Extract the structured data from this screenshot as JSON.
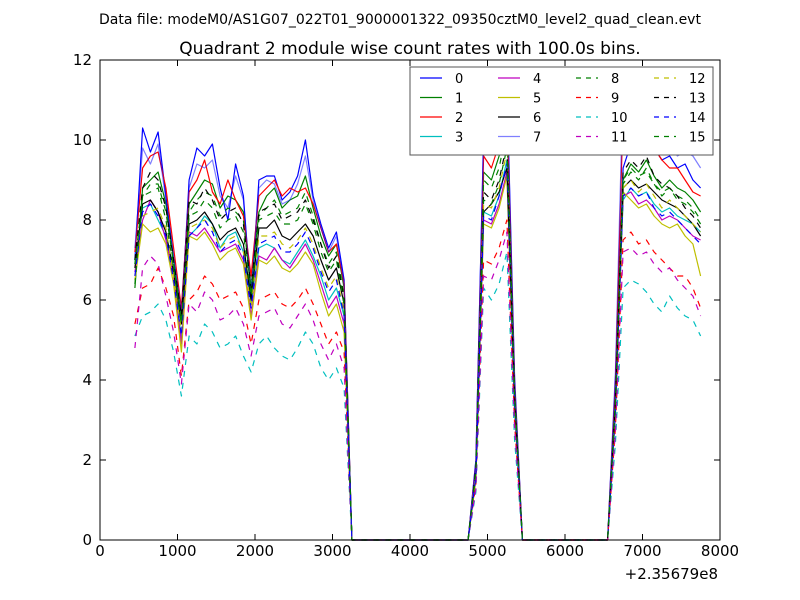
{
  "chart_data": {
    "type": "line",
    "suptitle": "Data file: modeM0/AS1G07_022T01_9000001322_09350cztM0_level2_quad_clean.evt",
    "title": "Quadrant 2 module wise count rates with 100.0s bins.",
    "xlabel": "",
    "ylabel": "",
    "x_offset_label": "+2.35679e8",
    "xlim": [
      0,
      8000
    ],
    "ylim": [
      0,
      12
    ],
    "xticks": [
      0,
      1000,
      2000,
      3000,
      4000,
      5000,
      6000,
      7000,
      8000
    ],
    "yticks": [
      0,
      2,
      4,
      6,
      8,
      10,
      12
    ],
    "grid": false,
    "legend": {
      "position": "top-right",
      "columns": 4
    },
    "x": [
      450,
      550,
      650,
      750,
      850,
      950,
      1050,
      1150,
      1250,
      1350,
      1450,
      1550,
      1650,
      1750,
      1850,
      1950,
      2050,
      2150,
      2250,
      2350,
      2450,
      2550,
      2650,
      2750,
      2850,
      2950,
      3050,
      3150,
      3250,
      3350,
      4750,
      4850,
      4950,
      5050,
      5150,
      5250,
      5350,
      5450,
      6550,
      6650,
      6750,
      6850,
      6950,
      7050,
      7150,
      7250,
      7350,
      7450,
      7550,
      7650,
      7750
    ],
    "series": [
      {
        "name": "0",
        "color": "#0000ff",
        "dash": "solid",
        "values": [
          7.0,
          10.3,
          9.7,
          10.2,
          8.6,
          7.0,
          5.5,
          9.0,
          9.8,
          9.6,
          9.9,
          8.8,
          8.0,
          9.4,
          8.6,
          6.0,
          9.0,
          9.1,
          9.1,
          8.5,
          8.7,
          9.1,
          10.0,
          8.6,
          7.9,
          7.3,
          7.7,
          6.5,
          0,
          0,
          0,
          2.0,
          10.1,
          9.9,
          10.4,
          11.3,
          4.0,
          0,
          0,
          4.0,
          9.3,
          9.9,
          9.7,
          10.0,
          9.8,
          9.5,
          9.6,
          9.3,
          9.4,
          9.0,
          8.8
        ]
      },
      {
        "name": "1",
        "color": "#008000",
        "dash": "solid",
        "values": [
          6.3,
          8.8,
          9.0,
          9.2,
          8.4,
          7.0,
          5.6,
          8.4,
          8.7,
          9.0,
          8.9,
          8.3,
          8.6,
          8.5,
          8.2,
          6.3,
          8.2,
          8.6,
          8.8,
          8.3,
          8.5,
          8.6,
          9.1,
          8.3,
          7.6,
          7.1,
          7.4,
          6.3,
          0,
          0,
          0,
          1.8,
          9.2,
          9.0,
          9.6,
          10.6,
          3.8,
          0,
          0,
          3.6,
          9.0,
          9.4,
          9.2,
          9.5,
          9.1,
          8.8,
          9.0,
          8.8,
          8.7,
          8.5,
          8.2
        ]
      },
      {
        "name": "2",
        "color": "#ff0000",
        "dash": "solid",
        "values": [
          7.2,
          9.3,
          9.6,
          9.7,
          8.8,
          7.3,
          5.8,
          8.7,
          9.0,
          9.5,
          8.7,
          8.4,
          9.0,
          8.5,
          8.1,
          6.6,
          8.6,
          8.8,
          9.0,
          8.6,
          8.8,
          8.7,
          8.8,
          8.4,
          7.8,
          7.2,
          7.4,
          6.4,
          0,
          0,
          0,
          1.9,
          9.6,
          9.3,
          9.9,
          10.9,
          3.9,
          0,
          0,
          3.9,
          10.7,
          10.0,
          9.7,
          9.9,
          9.8,
          9.5,
          9.3,
          9.3,
          9.0,
          8.7,
          8.6
        ]
      },
      {
        "name": "3",
        "color": "#00bfbf",
        "dash": "solid",
        "values": [
          6.9,
          8.3,
          8.4,
          8.0,
          7.6,
          6.8,
          5.0,
          7.6,
          7.8,
          8.1,
          7.9,
          7.3,
          7.6,
          7.7,
          7.2,
          5.9,
          7.3,
          7.4,
          7.3,
          7.0,
          6.9,
          7.2,
          7.5,
          7.1,
          6.6,
          6.0,
          6.3,
          5.6,
          0,
          0,
          0,
          1.6,
          8.2,
          8.1,
          8.6,
          9.5,
          3.4,
          0,
          0,
          3.3,
          8.5,
          8.8,
          8.6,
          8.7,
          8.4,
          8.2,
          8.3,
          8.1,
          8.0,
          7.9,
          7.7
        ]
      },
      {
        "name": "4",
        "color": "#bf00bf",
        "dash": "solid",
        "values": [
          6.7,
          8.0,
          8.5,
          8.2,
          7.5,
          6.6,
          4.9,
          7.7,
          7.6,
          7.8,
          7.5,
          7.2,
          7.3,
          7.4,
          7.0,
          5.6,
          7.1,
          7.0,
          7.3,
          7.0,
          6.8,
          7.1,
          7.4,
          7.0,
          6.4,
          5.8,
          6.1,
          5.4,
          0,
          0,
          0,
          1.6,
          8.0,
          7.9,
          8.4,
          9.2,
          3.3,
          0,
          0,
          3.2,
          8.6,
          8.7,
          8.4,
          8.5,
          8.3,
          8.0,
          8.1,
          8.0,
          7.8,
          7.6,
          7.5
        ]
      },
      {
        "name": "5",
        "color": "#bfbf00",
        "dash": "solid",
        "values": [
          6.5,
          7.9,
          7.7,
          7.8,
          7.4,
          6.4,
          4.7,
          7.6,
          7.5,
          7.7,
          7.4,
          7.0,
          7.2,
          7.3,
          6.9,
          5.5,
          7.0,
          6.9,
          7.1,
          6.8,
          6.7,
          6.9,
          7.2,
          6.9,
          6.2,
          5.6,
          5.9,
          5.2,
          0,
          0,
          0,
          1.5,
          7.9,
          7.8,
          8.3,
          9.1,
          3.2,
          0,
          0,
          3.1,
          8.7,
          8.5,
          8.3,
          8.4,
          8.1,
          7.9,
          7.8,
          7.9,
          7.6,
          7.4,
          6.6
        ]
      },
      {
        "name": "6",
        "color": "#000000",
        "dash": "solid",
        "values": [
          6.8,
          8.4,
          8.5,
          8.2,
          7.7,
          6.7,
          5.4,
          7.9,
          8.0,
          8.2,
          7.9,
          7.5,
          7.7,
          7.8,
          7.4,
          6.0,
          7.8,
          7.8,
          8.0,
          7.6,
          7.5,
          7.7,
          7.9,
          7.6,
          7.0,
          6.5,
          6.8,
          5.9,
          0,
          0,
          0,
          1.7,
          8.2,
          8.4,
          8.7,
          9.3,
          3.5,
          0,
          0,
          3.4,
          8.8,
          9.0,
          8.8,
          8.9,
          8.7,
          8.5,
          8.4,
          8.3,
          8.1,
          7.9,
          7.6
        ]
      },
      {
        "name": "7",
        "color": "#0000ff",
        "dash": "solid",
        "opacity": 0.5,
        "values": [
          7.3,
          9.8,
          9.4,
          9.9,
          8.5,
          7.1,
          5.7,
          8.8,
          9.4,
          9.3,
          9.5,
          8.6,
          8.3,
          9.1,
          8.5,
          6.2,
          8.8,
          9.0,
          8.9,
          8.4,
          8.5,
          8.9,
          9.6,
          8.5,
          7.8,
          7.2,
          7.6,
          6.4,
          0,
          0,
          0,
          2.0,
          10.0,
          9.7,
          10.1,
          11.4,
          4.1,
          0,
          0,
          4.2,
          11.4,
          11.0,
          10.0,
          10.3,
          10.0,
          9.7,
          9.9,
          9.6,
          9.7,
          9.6,
          9.3
        ]
      },
      {
        "name": "8",
        "color": "#008000",
        "dash": "dashed",
        "values": [
          6.4,
          8.6,
          8.9,
          8.9,
          8.2,
          6.9,
          5.5,
          8.2,
          8.5,
          8.7,
          8.6,
          8.1,
          8.3,
          8.2,
          8.0,
          6.2,
          8.1,
          8.3,
          8.5,
          8.1,
          8.2,
          8.3,
          8.7,
          8.1,
          7.4,
          6.9,
          7.2,
          6.1,
          0,
          0,
          0,
          1.8,
          9.0,
          8.8,
          9.3,
          10.3,
          3.7,
          0,
          0,
          3.5,
          8.9,
          9.2,
          9.0,
          9.3,
          8.9,
          8.6,
          8.8,
          8.6,
          8.5,
          8.3,
          8.0
        ]
      },
      {
        "name": "9",
        "color": "#ff0000",
        "dash": "dashed",
        "values": [
          5.4,
          6.3,
          6.4,
          6.8,
          6.3,
          5.6,
          4.1,
          6.0,
          6.2,
          6.6,
          6.4,
          6.0,
          6.1,
          6.2,
          5.8,
          4.9,
          6.0,
          6.1,
          6.2,
          5.9,
          5.8,
          6.0,
          6.3,
          5.9,
          5.4,
          4.9,
          5.2,
          4.7,
          0,
          0,
          0,
          1.4,
          7.0,
          6.9,
          7.3,
          8.0,
          2.9,
          0,
          0,
          2.8,
          7.5,
          7.7,
          7.4,
          7.5,
          7.2,
          7.0,
          6.8,
          6.6,
          6.6,
          6.3,
          5.8
        ]
      },
      {
        "name": "10",
        "color": "#00bfbf",
        "dash": "dashed",
        "values": [
          5.1,
          5.6,
          5.7,
          5.9,
          5.5,
          4.7,
          3.6,
          5.1,
          4.9,
          5.4,
          5.2,
          4.8,
          4.9,
          5.1,
          4.6,
          4.2,
          4.9,
          5.1,
          4.8,
          4.6,
          4.5,
          4.8,
          5.2,
          4.9,
          4.3,
          4.0,
          4.3,
          3.8,
          0,
          0,
          0,
          1.2,
          6.3,
          6.0,
          6.4,
          7.2,
          2.5,
          0,
          0,
          2.4,
          6.3,
          6.5,
          6.4,
          6.2,
          5.9,
          5.7,
          6.1,
          5.8,
          5.6,
          5.5,
          5.1
        ]
      },
      {
        "name": "11",
        "color": "#bf00bf",
        "dash": "dashed",
        "values": [
          4.8,
          6.8,
          7.1,
          6.9,
          6.1,
          5.2,
          3.9,
          5.9,
          5.7,
          6.2,
          6.0,
          5.5,
          5.6,
          5.8,
          5.4,
          4.6,
          5.6,
          5.7,
          5.8,
          5.4,
          5.3,
          5.6,
          5.9,
          5.5,
          4.9,
          4.5,
          4.9,
          4.3,
          0,
          0,
          0,
          1.3,
          6.6,
          6.5,
          7.0,
          7.7,
          2.8,
          0,
          0,
          2.7,
          7.2,
          7.3,
          7.1,
          7.2,
          6.9,
          6.7,
          6.8,
          6.5,
          6.3,
          6.1,
          5.6
        ]
      },
      {
        "name": "12",
        "color": "#bfbf00",
        "dash": "dashed",
        "values": [
          6.9,
          8.1,
          8.2,
          8.3,
          7.8,
          6.6,
          5.2,
          7.8,
          7.9,
          8.0,
          7.8,
          7.3,
          7.5,
          7.6,
          7.2,
          5.8,
          7.6,
          7.6,
          7.7,
          7.4,
          7.3,
          7.5,
          7.8,
          7.4,
          6.8,
          6.3,
          6.6,
          5.7,
          0,
          0,
          0,
          1.7,
          8.4,
          8.3,
          8.8,
          9.7,
          3.5,
          0,
          0,
          3.3,
          8.8,
          9.0,
          8.7,
          8.9,
          8.6,
          8.3,
          8.5,
          8.3,
          8.1,
          7.9,
          7.7
        ]
      },
      {
        "name": "13",
        "color": "#000000",
        "dash": "dashed",
        "values": [
          7.0,
          8.8,
          9.2,
          9.0,
          8.3,
          7.0,
          5.6,
          8.5,
          8.4,
          8.8,
          8.5,
          8.0,
          8.2,
          8.3,
          7.9,
          6.3,
          8.2,
          8.3,
          8.4,
          8.0,
          8.1,
          8.2,
          8.5,
          8.0,
          7.4,
          6.8,
          7.1,
          6.0,
          0,
          0,
          0,
          1.8,
          8.7,
          8.5,
          9.0,
          9.9,
          3.6,
          0,
          0,
          3.5,
          9.2,
          9.5,
          9.3,
          9.6,
          9.1,
          8.9,
          8.8,
          8.6,
          8.3,
          8.1,
          7.8
        ]
      },
      {
        "name": "14",
        "color": "#0000ff",
        "dash": "dashed",
        "values": [
          6.6,
          8.2,
          8.4,
          8.1,
          7.6,
          6.5,
          5.1,
          7.6,
          7.8,
          8.0,
          7.7,
          7.2,
          7.4,
          7.5,
          7.1,
          5.8,
          7.4,
          7.5,
          7.6,
          7.2,
          7.2,
          7.4,
          7.7,
          7.3,
          6.7,
          6.2,
          6.5,
          5.6,
          0,
          0,
          0,
          1.6,
          8.1,
          8.0,
          8.6,
          9.4,
          3.4,
          0,
          0,
          3.2,
          8.6,
          8.8,
          8.6,
          8.7,
          8.3,
          8.1,
          8.2,
          8.0,
          7.8,
          7.6,
          7.4
        ]
      },
      {
        "name": "15",
        "color": "#008000",
        "dash": "dashed",
        "values": [
          6.9,
          8.6,
          8.7,
          8.8,
          8.0,
          6.8,
          5.4,
          8.1,
          8.2,
          8.5,
          8.3,
          7.8,
          8.0,
          8.1,
          7.7,
          6.1,
          8.0,
          8.1,
          8.2,
          7.9,
          7.9,
          8.0,
          8.4,
          7.9,
          7.2,
          6.7,
          7.0,
          5.9,
          0,
          0,
          0,
          1.7,
          8.5,
          8.4,
          8.9,
          9.8,
          3.6,
          0,
          0,
          3.4,
          9.0,
          9.3,
          9.1,
          9.2,
          8.9,
          8.7,
          8.8,
          8.5,
          8.4,
          8.2,
          7.9
        ]
      }
    ]
  }
}
